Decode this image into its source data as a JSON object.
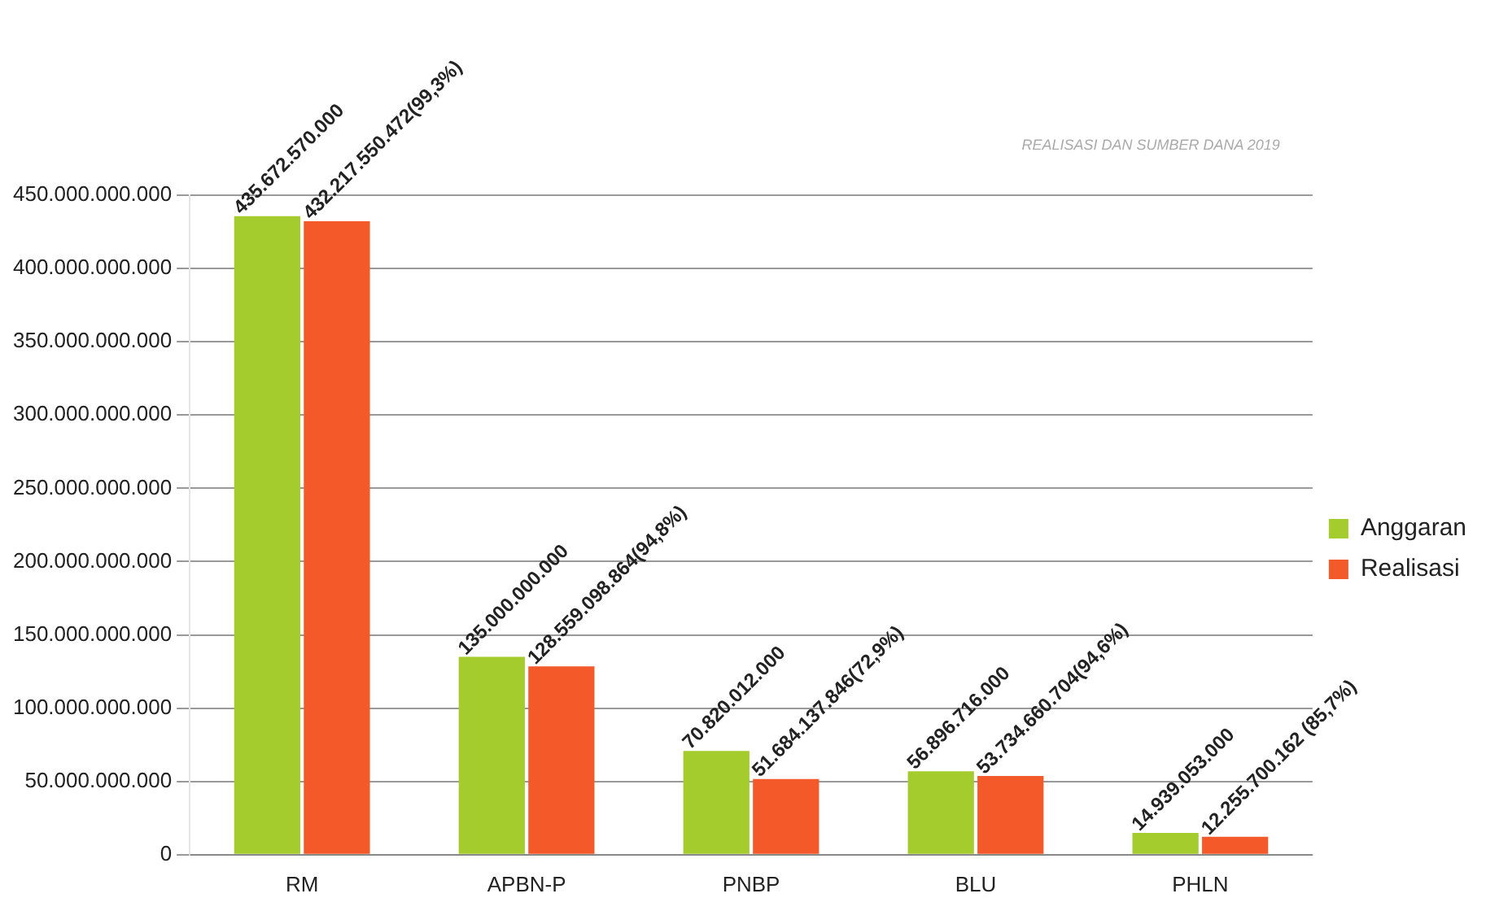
{
  "chart_data": {
    "type": "bar",
    "title": "REALISASI DAN SUMBER DANA 2019",
    "categories": [
      "RM",
      "APBN-P",
      "PNBP",
      "BLU",
      "PHLN"
    ],
    "series": [
      {
        "name": "Anggaran",
        "color": "#a4cc2c",
        "values": [
          435672570000,
          135000000000,
          70820012000,
          56896716000,
          14939053000
        ],
        "value_labels": [
          "435.672.570.000",
          "135.000.000.000",
          "70.820.012.000",
          "56.896.716.000",
          "14.939.053.000"
        ]
      },
      {
        "name": "Realisasi",
        "color": "#f4592a",
        "values": [
          432217550472,
          128559098864,
          51684137846,
          53734660704,
          12255700162
        ],
        "value_labels": [
          "432.217.550.472(99,3%)",
          "128.559.098.864(94,8%)",
          "51.684.137.846(72,9%)",
          "53.734.660.704(94,6%)",
          "12.255.700.162 (85,7%)"
        ]
      }
    ],
    "ylim": [
      0,
      450000000000
    ],
    "yticks": [
      {
        "value": 0,
        "label": "0"
      },
      {
        "value": 50000000000,
        "label": "50.000.000.000"
      },
      {
        "value": 100000000000,
        "label": "100.000.000.000"
      },
      {
        "value": 150000000000,
        "label": "150.000.000.000"
      },
      {
        "value": 200000000000,
        "label": "200.000.000.000"
      },
      {
        "value": 250000000000,
        "label": "250.000.000.000"
      },
      {
        "value": 300000000000,
        "label": "300.000.000.000"
      },
      {
        "value": 350000000000,
        "label": "350.000.000.000"
      },
      {
        "value": 400000000000,
        "label": "400.000.000.000"
      },
      {
        "value": 450000000000,
        "label": "450.000.000.000"
      }
    ],
    "grid": "y",
    "legend": "right"
  }
}
